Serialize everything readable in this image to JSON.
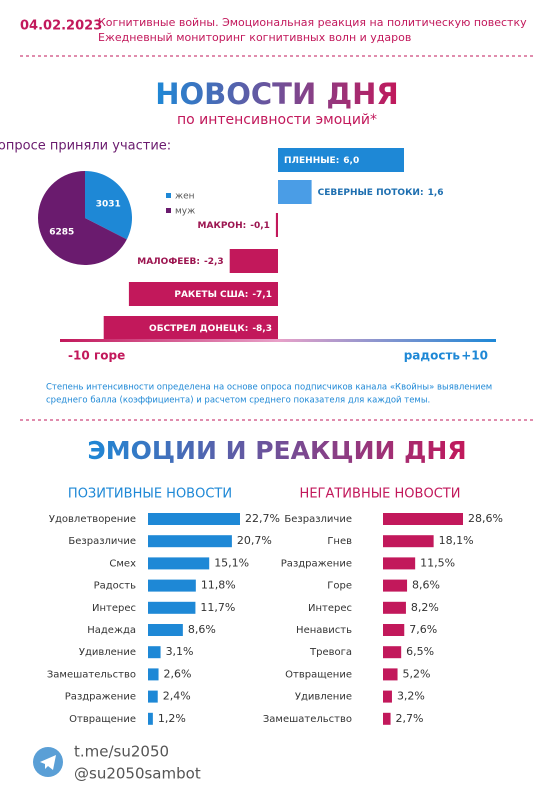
{
  "header": {
    "date": "04.02.2023",
    "line1": "Когнитивные войны. Эмоциональная реакция на политическую повестку",
    "line2": "Ежедневный мониторинг когнитивных волн и ударов"
  },
  "chart_data": [
    {
      "type": "pie",
      "title": "В опросе приняли участие:",
      "categories": [
        "жен",
        "муж"
      ],
      "values": [
        3031,
        6285
      ],
      "colors": [
        "#1e88d6",
        "#6a1b6e"
      ]
    },
    {
      "type": "diverging",
      "title": "НОВОСТИ ДНЯ",
      "subtitle": "по интенсивности эмоций*",
      "categories": [
        "ПЛЕННЫЕ:",
        "СЕВЕРНЫЕ ПОТОКИ:",
        "МАКРОН:",
        "МАЛОФЕЕВ:",
        "РАКЕТЫ США:",
        "ОБСТРЕЛ ДОНЕЦК:"
      ],
      "values": [
        6.0,
        1.6,
        -0.1,
        -2.3,
        -7.1,
        -8.3
      ],
      "value_labels": [
        "6,0",
        "1,6",
        "-0,1",
        "-2,3",
        "-7,1",
        "-8,3"
      ],
      "colors": [
        "#1e88d6",
        "#4a9de6",
        "#c2185b",
        "#c2185b",
        "#c2185b",
        "#c2185b"
      ],
      "xlim": [
        -10,
        10
      ],
      "xticks": [
        {
          "value": -10,
          "label": "-10"
        },
        {
          "value": 10,
          "label": "+10"
        }
      ],
      "xlabel_left": "горе",
      "xlabel_right": "радость",
      "note": [
        "Степень интенсивности определена на основе опроса подписчиков канала «Квойны» выявлением",
        "среднего балла (коэффициента) и расчетом среднего показателя для каждой темы."
      ]
    },
    {
      "type": "hbar",
      "section_title": "ЭМОЦИИ И РЕАКЦИИ ДНЯ",
      "title": "ПОЗИТИВНЫЕ НОВОСТИ",
      "color": "#1e88d6",
      "categories": [
        "Удовлетворение",
        "Безразличие",
        "Смех",
        "Радость",
        "Интерес",
        "Надежда",
        "Удивление",
        "Замешательство",
        "Раздражение",
        "Отвращение"
      ],
      "values": [
        22.7,
        20.7,
        15.1,
        11.8,
        11.7,
        8.6,
        3.1,
        2.6,
        2.4,
        1.2
      ],
      "value_labels": [
        "22,7%",
        "20,7%",
        "15,1%",
        "11,8%",
        "11,7%",
        "8,6%",
        "3,1%",
        "2,6%",
        "2,4%",
        "1,2%"
      ]
    },
    {
      "type": "hbar",
      "title": "НЕГАТИВНЫЕ НОВОСТИ",
      "color": "#c2185b",
      "categories": [
        "Безразличие",
        "Гнев",
        "Раздражение",
        "Горе",
        "Интерес",
        "Ненависть",
        "Тревога",
        "Отвращение",
        "Удивление",
        "Замешательство"
      ],
      "values": [
        28.6,
        18.1,
        11.5,
        8.6,
        8.2,
        7.6,
        6.5,
        5.2,
        3.2,
        2.7
      ],
      "value_labels": [
        "28,6%",
        "18,1%",
        "11,5%",
        "8,6%",
        "8,2%",
        "7,6%",
        "6,5%",
        "5,2%",
        "3,2%",
        "2,7%"
      ]
    }
  ],
  "footer": {
    "link": "t.me/su2050",
    "bot": "@su2050sambot"
  }
}
